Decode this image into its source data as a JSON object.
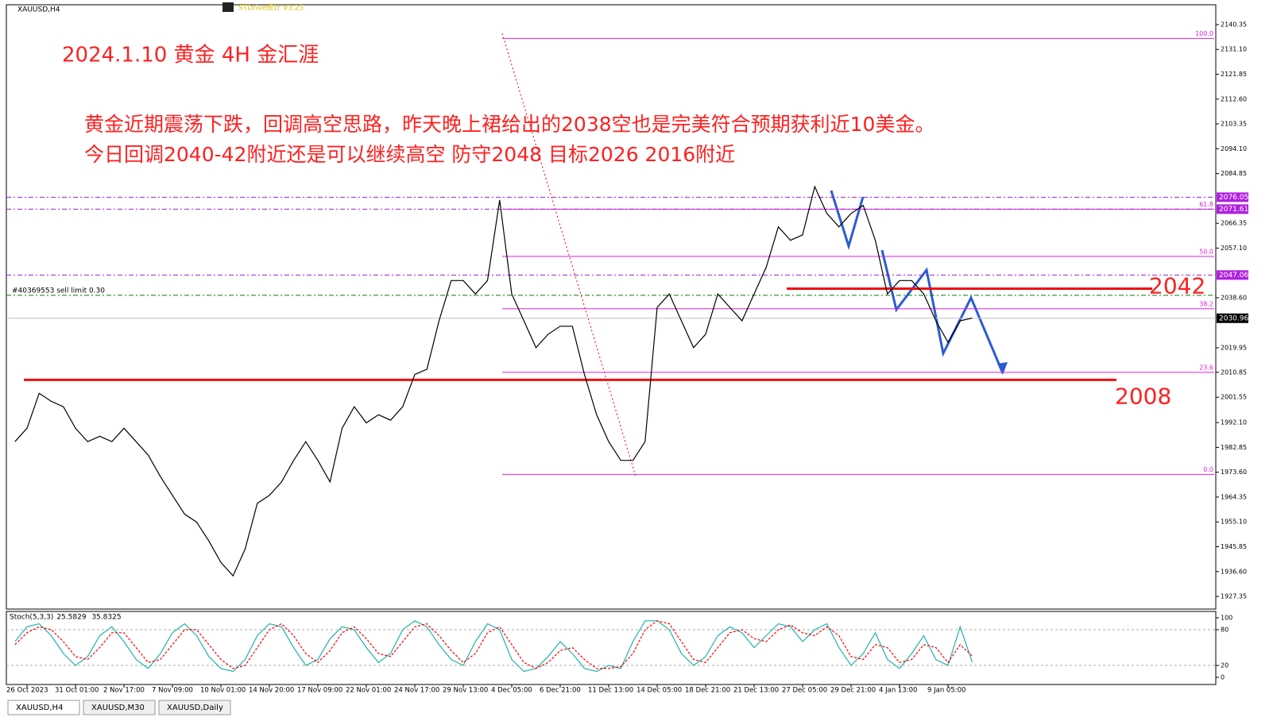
{
  "window": {
    "symbol": "XAUUSD,H4",
    "indicator": "STDrive统计 V3.25",
    "tabs": [
      "XAUUSD,H4",
      "XAUUSD,M30",
      "XAUUSD,Daily"
    ]
  },
  "chart_data": [
    {
      "type": "line",
      "title": "2024.1.10 黄金 4H 金汇涯",
      "notes": [
        "黄金近期震荡下跌，回调高空思路，昨天晚上裙给出的2038空也是完美符合预期获利近10美金。",
        "今日回调2040-42附近还是可以继续高空 防守2048 目标2026 2016附近"
      ],
      "categories": [
        null,
        "26 Oct 2023",
        null,
        null,
        null,
        "31 Oct 01:00",
        null,
        null,
        null,
        "2 Nov 17:00",
        null,
        null,
        null,
        "7 Nov 09:00",
        null,
        null,
        null,
        "10 Nov 01:00",
        null,
        null,
        null,
        "14 Nov 20:00",
        null,
        null,
        null,
        "17 Nov 09:00",
        null,
        null,
        null,
        "22 Nov 01:00",
        null,
        null,
        null,
        "24 Nov 17:00",
        null,
        null,
        null,
        "29 Nov 13:00",
        null,
        null,
        null,
        "4 Dec 05:00",
        null,
        null,
        null,
        "6 Dec 21:00",
        null,
        null,
        null,
        "11 Dec 13:00",
        null,
        null,
        null,
        "14 Dec 05:00",
        null,
        null,
        null,
        "18 Dec 21:00",
        null,
        null,
        null,
        "21 Dec 13:00",
        null,
        null,
        null,
        "27 Dec 05:00",
        null,
        null,
        null,
        "29 Dec 21:00",
        null,
        null,
        null,
        "4 Jan 13:00",
        null,
        null,
        null,
        "9 Jan 05:00",
        null,
        null
      ],
      "series": [
        {
          "color": "#000000",
          "values": [
            1985,
            1990,
            2003,
            2000,
            1998,
            1990,
            1985,
            1987,
            1985,
            1990,
            1985,
            1980,
            1972,
            1965,
            1958,
            1955,
            1948,
            1940,
            1935,
            1945,
            1962,
            1965,
            1970,
            1978,
            1985,
            1978,
            1970,
            1990,
            1998,
            1992,
            1995,
            1993,
            1998,
            2010,
            2012,
            2030,
            2045,
            2045,
            2040,
            2045,
            2075,
            2040,
            2030,
            2020,
            2025,
            2028,
            2028,
            2010,
            1995,
            1985,
            1978,
            1978,
            1985,
            2035,
            2040,
            2030,
            2020,
            2025,
            2040,
            2035,
            2030,
            2040,
            2050,
            2065,
            2060,
            2062,
            2080,
            2070,
            2065,
            2070,
            2073,
            2060,
            2040,
            2045,
            2045,
            2040,
            2030,
            2022,
            2030,
            2031
          ]
        }
      ],
      "ylim": [
        1925,
        2143
      ],
      "yticks": [
        2140.35,
        {
          "value": 2131.1,
          "label": "2131.10"
        },
        2121.85,
        {
          "value": 2112.6,
          "label": "2112.60"
        },
        2103.35,
        {
          "value": 2094.1,
          "label": "2094.10"
        },
        2084.85,
        2066.35,
        {
          "value": 2057.1,
          "label": "2057.10"
        },
        {
          "value": 2038.6,
          "label": "2038.60"
        },
        2019.95,
        2010.85,
        2001.55,
        {
          "value": 1992.1,
          "label": "1992.10"
        },
        1982.85,
        {
          "value": 1973.6,
          "label": "1973.60"
        },
        1964.35,
        {
          "value": 1955.1,
          "label": "1955.10"
        },
        1945.85,
        {
          "value": 1936.6,
          "label": "1936.60"
        },
        1927.35
      ],
      "price_lines": [
        2076.05,
        2071.61,
        2047.06
      ],
      "current_price": 2030.96,
      "key_levels": [
        2042,
        2008
      ],
      "order": {
        "label": "#40369553 sell limit 0.30",
        "price": 2039.5
      },
      "fib_levels": [
        {
          "label": "100.0",
          "price": 2135.2
        },
        {
          "label": "61.8",
          "price": 2071.6
        },
        {
          "label": "50.0",
          "price": 2054
        },
        {
          "label": "38.2",
          "price": 2034.5
        },
        {
          "label": "23.6",
          "price": 2010.8
        },
        {
          "label": "0.0",
          "price": 1972.8
        }
      ]
    },
    {
      "type": "line",
      "title": "Stoch(5,3,3)",
      "series": [
        {
          "color": "#20b2aa",
          "values": [
            60,
            85,
            90,
            70,
            40,
            20,
            35,
            70,
            85,
            60,
            30,
            15,
            40,
            75,
            90,
            70,
            35,
            15,
            10,
            30,
            70,
            90,
            85,
            50,
            20,
            30,
            65,
            85,
            80,
            50,
            25,
            40,
            80,
            95,
            85,
            55,
            30,
            20,
            60,
            90,
            80,
            30,
            10,
            15,
            35,
            60,
            40,
            15,
            10,
            20,
            15,
            60,
            95,
            95,
            80,
            40,
            20,
            35,
            70,
            85,
            75,
            50,
            70,
            90,
            85,
            60,
            80,
            90,
            50,
            20,
            40,
            75,
            30,
            15,
            40,
            70,
            30,
            20,
            85,
            25.5829
          ]
        },
        {
          "color": "#ff0000",
          "dash": true,
          "values": [
            55,
            75,
            85,
            80,
            60,
            35,
            30,
            50,
            75,
            75,
            50,
            25,
            30,
            55,
            80,
            80,
            55,
            30,
            15,
            20,
            50,
            80,
            90,
            70,
            40,
            25,
            45,
            75,
            85,
            65,
            40,
            35,
            60,
            85,
            90,
            70,
            45,
            25,
            40,
            75,
            85,
            55,
            25,
            15,
            25,
            45,
            50,
            30,
            15,
            15,
            18,
            40,
            80,
            95,
            90,
            60,
            30,
            25,
            50,
            75,
            80,
            65,
            60,
            80,
            88,
            75,
            70,
            85,
            70,
            35,
            30,
            55,
            50,
            25,
            30,
            55,
            50,
            25,
            55,
            35.8325
          ]
        }
      ],
      "ylim": [
        0,
        100
      ],
      "yticks": [
        100,
        80,
        20,
        0
      ]
    }
  ]
}
